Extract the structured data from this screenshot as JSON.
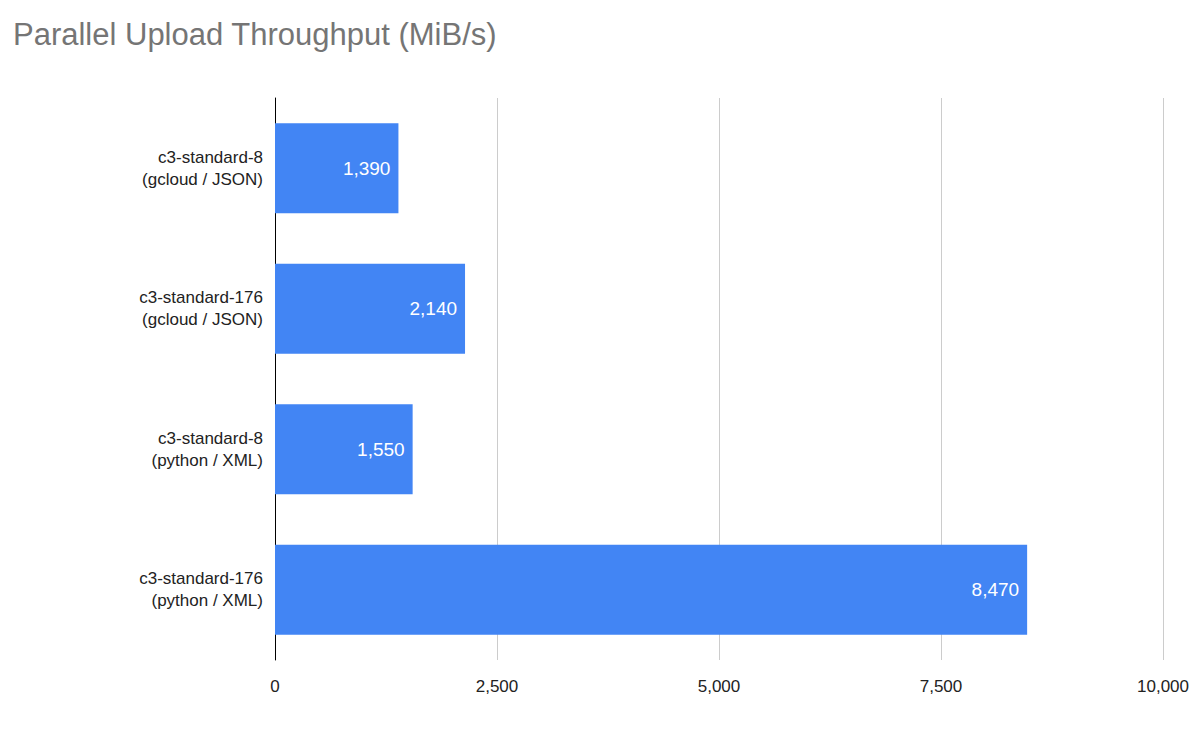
{
  "chart_data": {
    "type": "bar",
    "title": "Parallel Upload Throughput (MiB/s)",
    "orientation": "horizontal",
    "categories": [
      "c3-standard-8\n(gcloud / JSON)",
      "c3-standard-176\n(gcloud / JSON)",
      "c3-standard-8\n(python / XML)",
      "c3-standard-176\n(python / XML)"
    ],
    "values": [
      1390,
      2140,
      1550,
      8470
    ],
    "value_labels": [
      "1,390",
      "2,140",
      "1,550",
      "8,470"
    ],
    "data_labels": true,
    "color": "#4285f4",
    "xlim": [
      0,
      10000
    ],
    "xticks": [
      0,
      {
        "value": 2500,
        "label": "2,500"
      },
      {
        "value": 5000,
        "label": "5,000"
      },
      {
        "value": 7500,
        "label": "7,500"
      },
      {
        "value": 10000,
        "label": "10,000"
      }
    ],
    "grid": true
  }
}
